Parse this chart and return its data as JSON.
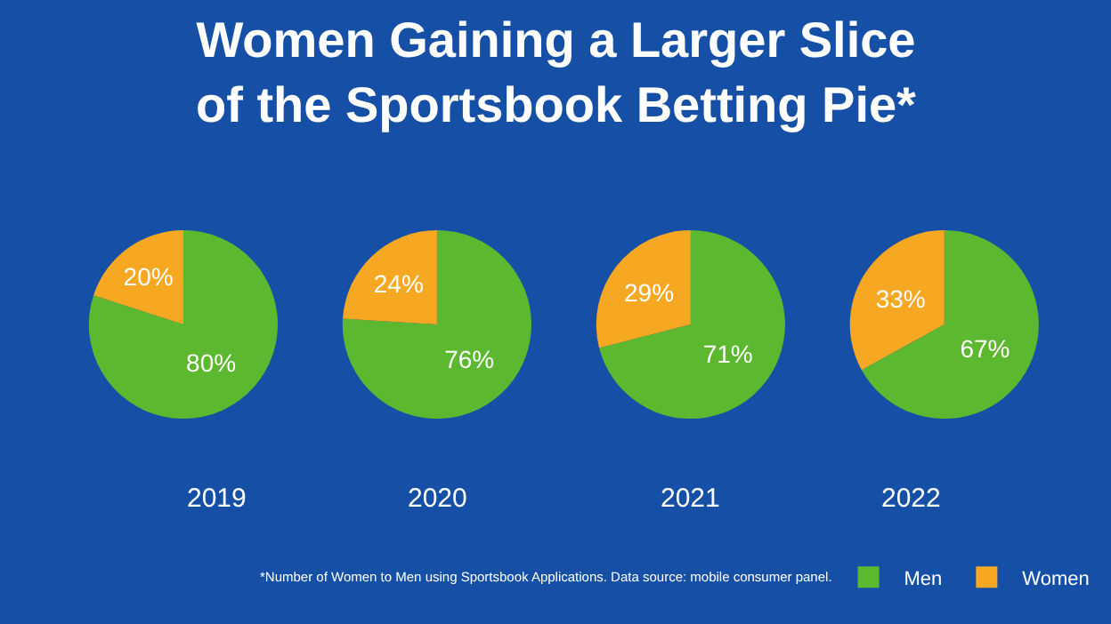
{
  "chart_data": {
    "type": "pie",
    "title": "Women Gaining a Larger Slice of the Sportsbook Betting Pie*",
    "categories": [
      "Men",
      "Women"
    ],
    "colors": [
      "#5cb82e",
      "#f7a823"
    ],
    "series": [
      {
        "name": "2019",
        "values": [
          80,
          20
        ],
        "value_labels": [
          "80%",
          "20%"
        ]
      },
      {
        "name": "2020",
        "values": [
          76,
          24
        ],
        "value_labels": [
          "76%",
          "24%"
        ]
      },
      {
        "name": "2021",
        "values": [
          71,
          29
        ],
        "value_labels": [
          "71%",
          "29%"
        ]
      },
      {
        "name": "2022",
        "values": [
          67,
          33
        ],
        "value_labels": [
          "67%",
          "33%"
        ]
      }
    ],
    "annotations": [
      "*Number of Women to Men using Sportsbook Applications. Data source: mobile consumer panel."
    ],
    "legend": "bottom right"
  }
}
